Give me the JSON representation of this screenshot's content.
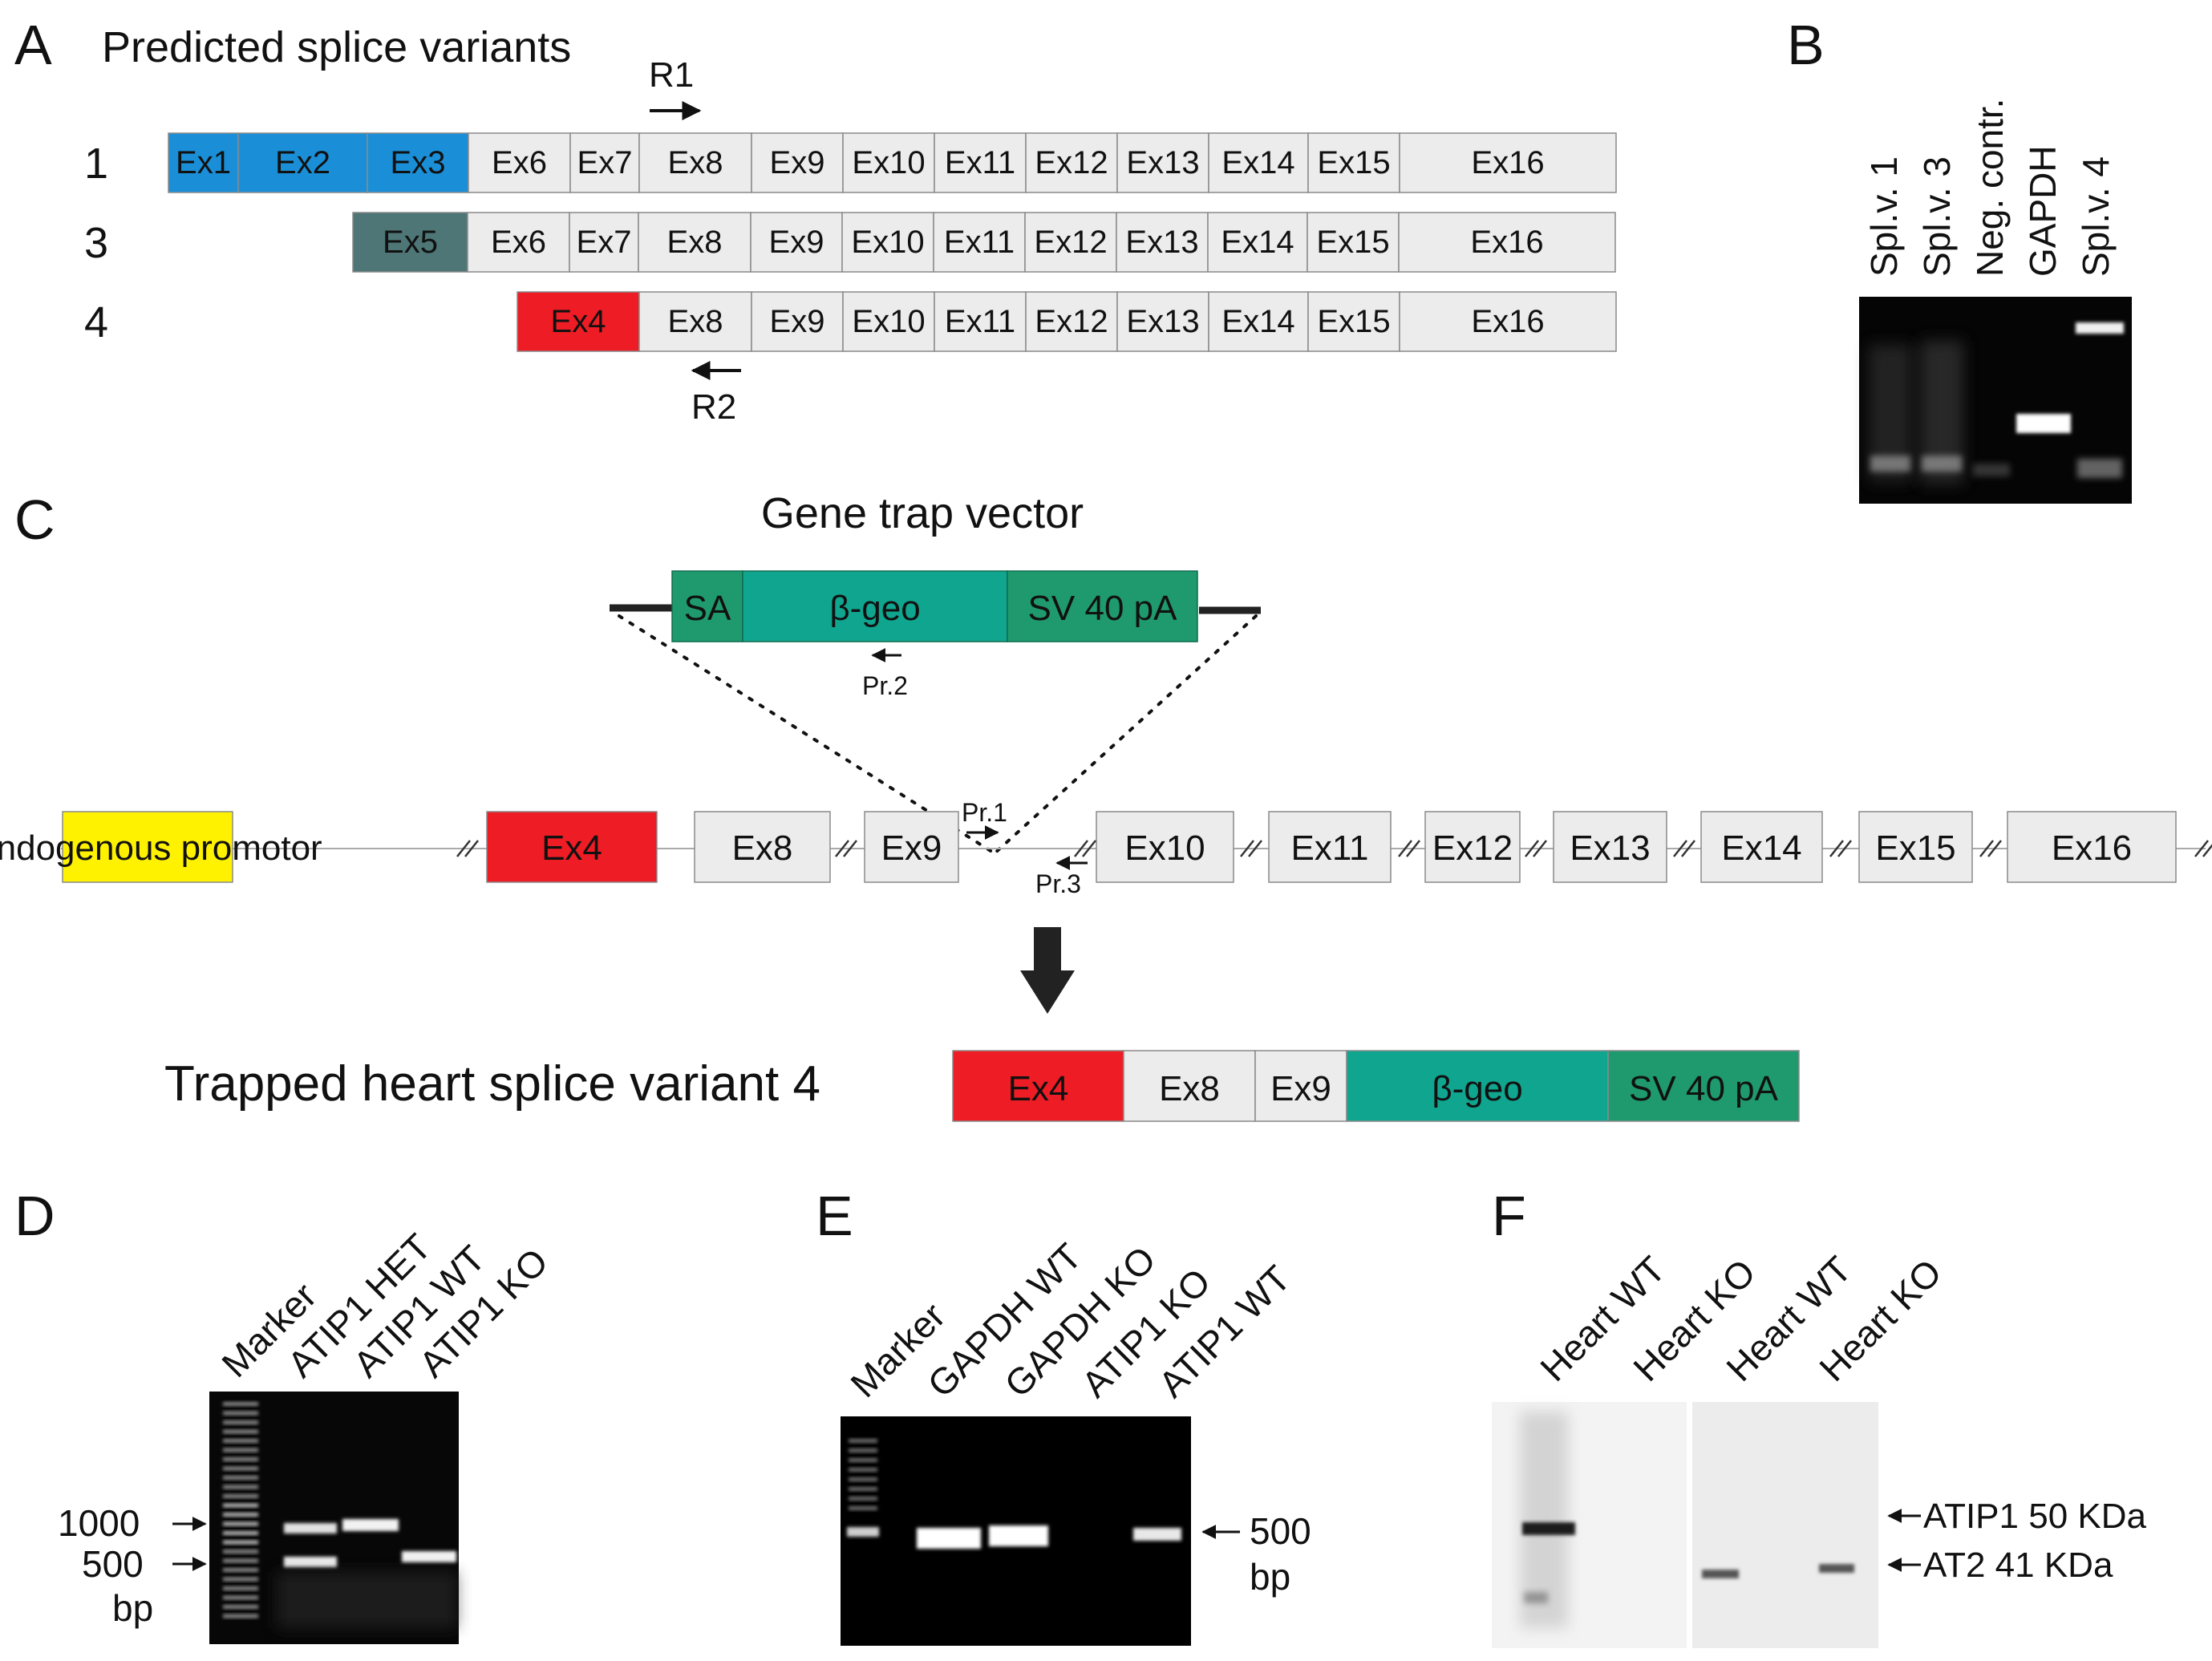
{
  "panel_letters": {
    "a": "A",
    "b": "B",
    "c": "C",
    "d": "D",
    "e": "E",
    "f": "F"
  },
  "panel_a": {
    "title": "Predicted splice variants",
    "primer_r1": "R1",
    "primer_r2": "R2",
    "rows": [
      {
        "id": "1",
        "exons": [
          {
            "label": "Ex1",
            "color": "#1a8fd8"
          },
          {
            "label": "Ex2",
            "color": "#1a8fd8"
          },
          {
            "label": "Ex3",
            "color": "#1a8fd8"
          },
          {
            "label": "Ex6",
            "color": "#ececec"
          },
          {
            "label": "Ex7",
            "color": "#ececec"
          },
          {
            "label": "Ex8",
            "color": "#ececec"
          },
          {
            "label": "Ex9",
            "color": "#ececec"
          },
          {
            "label": "Ex10",
            "color": "#ececec"
          },
          {
            "label": "Ex11",
            "color": "#ececec"
          },
          {
            "label": "Ex12",
            "color": "#ececec"
          },
          {
            "label": "Ex13",
            "color": "#ececec"
          },
          {
            "label": "Ex14",
            "color": "#ececec"
          },
          {
            "label": "Ex15",
            "color": "#ececec"
          },
          {
            "label": "Ex16",
            "color": "#ececec"
          }
        ]
      },
      {
        "id": "3",
        "exons": [
          {
            "label": "Ex5",
            "color": "#4e7676"
          },
          {
            "label": "Ex6",
            "color": "#ececec"
          },
          {
            "label": "Ex7",
            "color": "#ececec"
          },
          {
            "label": "Ex8",
            "color": "#ececec"
          },
          {
            "label": "Ex9",
            "color": "#ececec"
          },
          {
            "label": "Ex10",
            "color": "#ececec"
          },
          {
            "label": "Ex11",
            "color": "#ececec"
          },
          {
            "label": "Ex12",
            "color": "#ececec"
          },
          {
            "label": "Ex13",
            "color": "#ececec"
          },
          {
            "label": "Ex14",
            "color": "#ececec"
          },
          {
            "label": "Ex15",
            "color": "#ececec"
          },
          {
            "label": "Ex16",
            "color": "#ececec"
          }
        ]
      },
      {
        "id": "4",
        "exons": [
          {
            "label": "Ex4",
            "color": "#ee1c24"
          },
          {
            "label": "Ex8",
            "color": "#ececec"
          },
          {
            "label": "Ex9",
            "color": "#ececec"
          },
          {
            "label": "Ex10",
            "color": "#ececec"
          },
          {
            "label": "Ex11",
            "color": "#ececec"
          },
          {
            "label": "Ex12",
            "color": "#ececec"
          },
          {
            "label": "Ex13",
            "color": "#ececec"
          },
          {
            "label": "Ex14",
            "color": "#ececec"
          },
          {
            "label": "Ex15",
            "color": "#ececec"
          },
          {
            "label": "Ex16",
            "color": "#ececec"
          }
        ]
      }
    ]
  },
  "panel_b": {
    "lanes": [
      "Spl.v. 1",
      "Spl.v. 3",
      "Neg. contr.",
      "GAPDH",
      "Spl.v. 4"
    ]
  },
  "panel_c": {
    "vector_title": "Gene trap vector",
    "vector": [
      {
        "label": "SA",
        "color": "#1f9a6e"
      },
      {
        "label": "β-geo",
        "color": "#10a58f"
      },
      {
        "label": "SV 40 pA",
        "color": "#1f9a6e"
      }
    ],
    "primers": {
      "pr1": "Pr.1",
      "pr2": "Pr.2",
      "pr3": "Pr.3"
    },
    "genome": [
      {
        "label": "Endogenous promotor",
        "color": "#fff200"
      },
      {
        "label": "Ex4",
        "color": "#ee1c24"
      },
      {
        "label": "Ex8",
        "color": "#ececec"
      },
      {
        "label": "Ex9",
        "color": "#ececec"
      },
      {
        "label": "Ex10",
        "color": "#ececec"
      },
      {
        "label": "Ex11",
        "color": "#ececec"
      },
      {
        "label": "Ex12",
        "color": "#ececec"
      },
      {
        "label": "Ex13",
        "color": "#ececec"
      },
      {
        "label": "Ex14",
        "color": "#ececec"
      },
      {
        "label": "Ex15",
        "color": "#ececec"
      },
      {
        "label": "Ex16",
        "color": "#ececec"
      }
    ],
    "trapped_title": "Trapped heart splice variant 4",
    "trapped": [
      {
        "label": "Ex4",
        "color": "#ee1c24"
      },
      {
        "label": "Ex8",
        "color": "#ececec"
      },
      {
        "label": "Ex9",
        "color": "#ececec"
      },
      {
        "label": "β-geo",
        "color": "#10a58f"
      },
      {
        "label": "SV 40 pA",
        "color": "#1f9a6e"
      }
    ]
  },
  "panel_d": {
    "lanes": [
      "Marker",
      "ATIP1 HET",
      "ATIP1 WT",
      "ATIP1 KO"
    ],
    "marker_1000": "1000",
    "marker_500": "500",
    "unit": "bp"
  },
  "panel_e": {
    "lanes": [
      "Marker",
      "GAPDH WT",
      "GAPDH KO",
      "ATIP1 KO",
      "ATIP1 WT"
    ],
    "marker_500": "500",
    "unit": "bp"
  },
  "panel_f": {
    "lanes": [
      "Heart WT",
      "Heart KO",
      "Heart WT",
      "Heart KO"
    ],
    "band_atip1": "ATIP1 50 KDa",
    "band_at2": "AT2 41 KDa"
  }
}
